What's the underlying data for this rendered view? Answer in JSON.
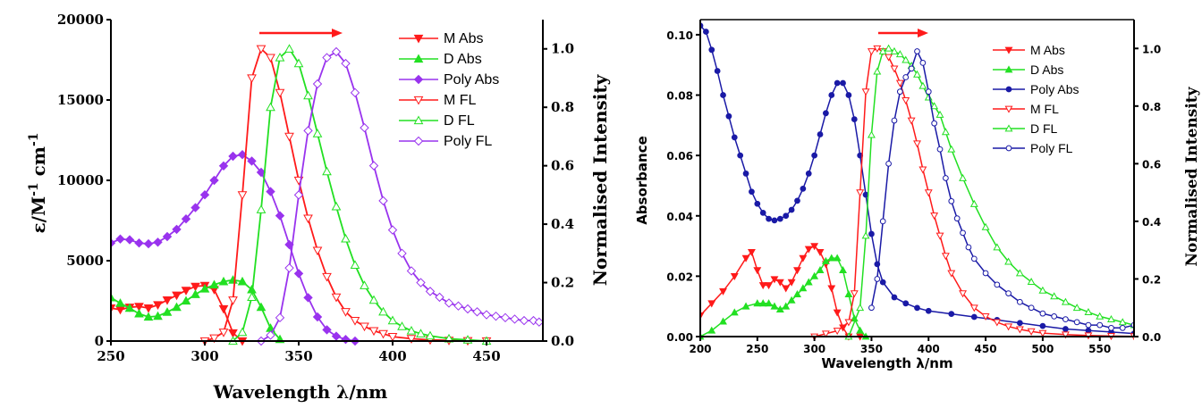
{
  "chart_data": [
    {
      "type": "line",
      "panel": "left",
      "xlabel": "Wavelength λ/nm",
      "ylabel_main": "ε/M",
      "ylabel_sup1": "-1",
      "ylabel_mid": " cm",
      "ylabel_sup2": "-1",
      "y2label": "Normalised Intensity",
      "xlim": [
        250,
        480
      ],
      "ylim": [
        0,
        20000
      ],
      "y2lim": [
        0,
        1.1
      ],
      "xticks": [
        "250",
        "300",
        "350",
        "400",
        "450"
      ],
      "yticks": [
        "0",
        "5000",
        "10000",
        "15000",
        "20000"
      ],
      "y2ticks": [
        "0.0",
        "0.2",
        "0.4",
        "0.6",
        "0.8",
        "1.0"
      ],
      "annotation": "red arrow pointing right (bathochromic shift)",
      "colors": {
        "M": "#ff1a1a",
        "D": "#22e022",
        "Poly": "#9933ee",
        "arrow": "#ff1a1a"
      },
      "series": [
        {
          "name": "M Abs",
          "axis": "left",
          "marker": "tri-down-filled",
          "x": [
            250,
            255,
            260,
            265,
            270,
            275,
            280,
            285,
            290,
            295,
            300,
            305,
            310,
            315,
            320
          ],
          "y": [
            2050,
            1950,
            2100,
            2150,
            2050,
            2250,
            2550,
            2850,
            3150,
            3400,
            3450,
            3200,
            2000,
            500,
            0
          ]
        },
        {
          "name": "D Abs",
          "axis": "left",
          "marker": "tri-up-filled",
          "x": [
            250,
            255,
            260,
            265,
            270,
            275,
            280,
            285,
            290,
            295,
            300,
            305,
            310,
            315,
            320,
            325,
            330,
            335,
            340
          ],
          "y": [
            2700,
            2350,
            2050,
            1700,
            1500,
            1550,
            1800,
            2100,
            2500,
            2900,
            3250,
            3500,
            3700,
            3800,
            3700,
            3200,
            2100,
            800,
            100
          ]
        },
        {
          "name": "Poly Abs",
          "axis": "left",
          "marker": "diamond-filled",
          "x": [
            250,
            255,
            260,
            265,
            270,
            275,
            280,
            285,
            290,
            295,
            300,
            305,
            310,
            315,
            320,
            325,
            330,
            335,
            340,
            345,
            350,
            355,
            360,
            365,
            370,
            375,
            380
          ],
          "y": [
            6100,
            6350,
            6300,
            6100,
            6050,
            6150,
            6500,
            6950,
            7600,
            8300,
            9100,
            10000,
            10900,
            11500,
            11600,
            11200,
            10500,
            9300,
            7800,
            6000,
            4200,
            2700,
            1500,
            700,
            300,
            100,
            0
          ]
        },
        {
          "name": "M FL",
          "axis": "right",
          "marker": "tri-down-open",
          "x": [
            300,
            305,
            310,
            315,
            320,
            325,
            330,
            335,
            340,
            345,
            350,
            355,
            360,
            365,
            370,
            375,
            380,
            385,
            390,
            395,
            400,
            410,
            420,
            430,
            440,
            450
          ],
          "y": [
            0.0,
            0.01,
            0.03,
            0.14,
            0.5,
            0.9,
            1.0,
            0.97,
            0.85,
            0.7,
            0.55,
            0.42,
            0.31,
            0.22,
            0.15,
            0.1,
            0.07,
            0.05,
            0.035,
            0.025,
            0.015,
            0.008,
            0.004,
            0.002,
            0.001,
            0.0
          ]
        },
        {
          "name": "D FL",
          "axis": "right",
          "marker": "tri-up-open",
          "x": [
            315,
            320,
            325,
            330,
            335,
            340,
            345,
            350,
            355,
            360,
            365,
            370,
            375,
            380,
            385,
            390,
            395,
            400,
            405,
            410,
            415,
            420,
            430,
            440,
            450
          ],
          "y": [
            0.0,
            0.03,
            0.15,
            0.45,
            0.8,
            0.97,
            1.0,
            0.95,
            0.84,
            0.71,
            0.58,
            0.46,
            0.35,
            0.26,
            0.19,
            0.14,
            0.1,
            0.07,
            0.05,
            0.035,
            0.025,
            0.018,
            0.008,
            0.004,
            0.0
          ]
        },
        {
          "name": "Poly  FL",
          "axis": "right",
          "marker": "diamond-open",
          "x": [
            330,
            335,
            340,
            345,
            350,
            355,
            360,
            365,
            370,
            375,
            380,
            385,
            390,
            395,
            400,
            405,
            410,
            415,
            420,
            425,
            430,
            435,
            440,
            445,
            450,
            455,
            460,
            465,
            470,
            475,
            478
          ],
          "y": [
            0.0,
            0.02,
            0.08,
            0.25,
            0.5,
            0.72,
            0.88,
            0.97,
            0.99,
            0.95,
            0.85,
            0.73,
            0.6,
            0.48,
            0.38,
            0.3,
            0.24,
            0.2,
            0.17,
            0.15,
            0.13,
            0.12,
            0.11,
            0.1,
            0.09,
            0.085,
            0.08,
            0.075,
            0.07,
            0.07,
            0.065
          ]
        }
      ]
    },
    {
      "type": "line",
      "panel": "right",
      "xlabel": "Wavelength λ/nm",
      "ylabel": "Absorbance",
      "y2label": "Normalised Intensity",
      "xlim": [
        200,
        580
      ],
      "ylim": [
        0,
        0.105
      ],
      "y2lim": [
        0,
        1.1
      ],
      "xticks": [
        "200",
        "250",
        "300",
        "350",
        "400",
        "450",
        "500",
        "550"
      ],
      "yticks": [
        "0.00",
        "0.02",
        "0.04",
        "0.06",
        "0.08",
        "0.10"
      ],
      "y2ticks": [
        "0.0",
        "0.2",
        "0.4",
        "0.6",
        "0.8",
        "1.0"
      ],
      "annotation": "red arrow pointing right (bathochromic shift)",
      "colors": {
        "M": "#ff1a1a",
        "D": "#22e022",
        "Poly": "#1a1aa6",
        "arrow": "#ff1a1a"
      },
      "series": [
        {
          "name": "M Abs",
          "axis": "left",
          "marker": "tri-down-filled",
          "x": [
            200,
            210,
            220,
            230,
            240,
            245,
            250,
            255,
            260,
            265,
            270,
            275,
            280,
            285,
            290,
            295,
            300,
            305,
            310,
            315,
            320,
            325,
            330,
            340
          ],
          "y": [
            0.007,
            0.011,
            0.015,
            0.02,
            0.026,
            0.028,
            0.022,
            0.017,
            0.017,
            0.019,
            0.018,
            0.016,
            0.018,
            0.022,
            0.026,
            0.029,
            0.03,
            0.028,
            0.024,
            0.016,
            0.008,
            0.003,
            0.0,
            0.0
          ]
        },
        {
          "name": "D Abs",
          "axis": "left",
          "marker": "tri-up-filled",
          "x": [
            200,
            210,
            220,
            230,
            240,
            250,
            255,
            260,
            265,
            270,
            275,
            280,
            285,
            290,
            295,
            300,
            305,
            310,
            315,
            320,
            325,
            330,
            335,
            340,
            345
          ],
          "y": [
            0.0,
            0.002,
            0.005,
            0.008,
            0.01,
            0.011,
            0.011,
            0.011,
            0.01,
            0.009,
            0.01,
            0.012,
            0.014,
            0.016,
            0.018,
            0.02,
            0.022,
            0.025,
            0.026,
            0.026,
            0.022,
            0.014,
            0.006,
            0.002,
            0.0
          ]
        },
        {
          "name": "Poly Abs",
          "axis": "left",
          "marker": "circle-filled",
          "x": [
            200,
            205,
            210,
            215,
            220,
            225,
            230,
            235,
            240,
            245,
            250,
            255,
            260,
            265,
            270,
            275,
            280,
            285,
            290,
            295,
            300,
            305,
            310,
            315,
            320,
            325,
            330,
            335,
            340,
            345,
            350,
            355,
            360,
            370,
            380,
            390,
            400,
            420,
            440,
            460,
            480,
            500,
            520,
            540,
            560,
            580
          ],
          "y": [
            0.103,
            0.101,
            0.095,
            0.088,
            0.08,
            0.073,
            0.066,
            0.06,
            0.054,
            0.048,
            0.044,
            0.041,
            0.039,
            0.0385,
            0.039,
            0.04,
            0.042,
            0.045,
            0.049,
            0.054,
            0.06,
            0.067,
            0.074,
            0.08,
            0.084,
            0.084,
            0.08,
            0.072,
            0.06,
            0.047,
            0.034,
            0.024,
            0.018,
            0.013,
            0.011,
            0.0095,
            0.0085,
            0.0075,
            0.0065,
            0.0055,
            0.0045,
            0.0035,
            0.0025,
            0.002,
            0.0015,
            0.001
          ]
        },
        {
          "name": "M FL",
          "axis": "right",
          "marker": "tri-down-open",
          "x": [
            300,
            310,
            320,
            330,
            335,
            340,
            345,
            350,
            355,
            360,
            365,
            370,
            375,
            380,
            385,
            390,
            395,
            400,
            405,
            410,
            415,
            420,
            430,
            440,
            450,
            460,
            470,
            480,
            490,
            500,
            520,
            540,
            560,
            580
          ],
          "y": [
            0.0,
            0.01,
            0.02,
            0.05,
            0.15,
            0.5,
            0.85,
            0.99,
            1.0,
            0.99,
            0.97,
            0.93,
            0.88,
            0.82,
            0.75,
            0.67,
            0.58,
            0.5,
            0.42,
            0.35,
            0.28,
            0.22,
            0.15,
            0.1,
            0.07,
            0.05,
            0.035,
            0.025,
            0.018,
            0.012,
            0.007,
            0.004,
            0.002,
            0.001
          ]
        },
        {
          "name": "D FL",
          "axis": "right",
          "marker": "tri-up-open",
          "x": [
            330,
            340,
            345,
            350,
            355,
            360,
            365,
            370,
            375,
            380,
            385,
            390,
            395,
            400,
            405,
            410,
            415,
            420,
            430,
            440,
            450,
            460,
            470,
            480,
            490,
            500,
            510,
            520,
            530,
            540,
            550,
            560,
            570,
            580
          ],
          "y": [
            0.0,
            0.1,
            0.35,
            0.7,
            0.92,
            0.99,
            1.0,
            0.99,
            0.98,
            0.96,
            0.94,
            0.91,
            0.87,
            0.83,
            0.8,
            0.77,
            0.71,
            0.65,
            0.55,
            0.46,
            0.38,
            0.31,
            0.26,
            0.22,
            0.19,
            0.16,
            0.14,
            0.12,
            0.1,
            0.085,
            0.07,
            0.06,
            0.05,
            0.04
          ]
        },
        {
          "name": "Poly FL",
          "axis": "right",
          "marker": "circle-open",
          "x": [
            350,
            355,
            360,
            365,
            370,
            375,
            380,
            385,
            390,
            395,
            400,
            405,
            410,
            415,
            420,
            425,
            430,
            435,
            440,
            450,
            460,
            470,
            480,
            490,
            500,
            510,
            520,
            530,
            540,
            550,
            560,
            570,
            580
          ],
          "y": [
            0.1,
            0.2,
            0.4,
            0.6,
            0.75,
            0.85,
            0.9,
            0.93,
            0.99,
            0.95,
            0.85,
            0.74,
            0.65,
            0.55,
            0.47,
            0.41,
            0.36,
            0.31,
            0.27,
            0.22,
            0.18,
            0.15,
            0.12,
            0.1,
            0.08,
            0.07,
            0.06,
            0.05,
            0.04,
            0.04,
            0.03,
            0.03,
            0.04
          ]
        }
      ]
    }
  ]
}
